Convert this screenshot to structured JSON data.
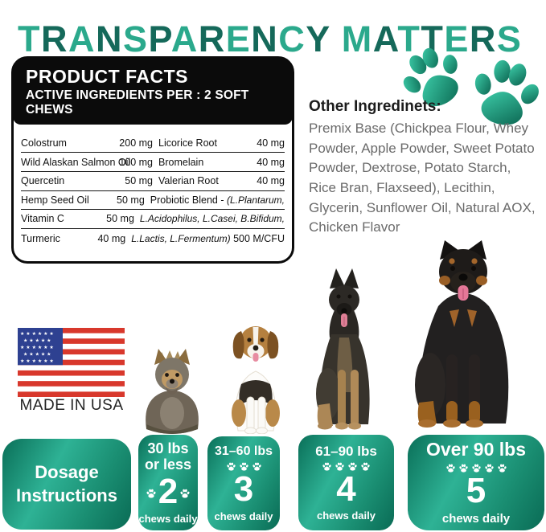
{
  "title": {
    "text": "TRANSPARENCY MATTERS",
    "color_light": "#2BA98C",
    "color_dark": "#15695A"
  },
  "facts": {
    "title": "PRODUCT FACTS",
    "subtitle": "ACTIVE INGREDIENTS PER : 2 SOFT CHEWS",
    "rows": [
      {
        "left_name": "Colostrum",
        "left_amt": "200 mg",
        "right_pre": "Licorice Root",
        "right_it": "",
        "right_post": "",
        "right_amt": "40 mg"
      },
      {
        "left_name": "Wild Alaskan Salmon Oil",
        "left_amt": "100 mg",
        "right_pre": "Bromelain",
        "right_it": "",
        "right_post": "",
        "right_amt": "40 mg"
      },
      {
        "left_name": "Quercetin",
        "left_amt": "50 mg",
        "right_pre": "Valerian Root",
        "right_it": "",
        "right_post": "",
        "right_amt": "40 mg"
      },
      {
        "left_name": "Hemp Seed Oil",
        "left_amt": "50 mg",
        "right_pre": "Probiotic Blend - ",
        "right_it": "(L.Plantarum,",
        "right_post": "",
        "right_amt": ""
      },
      {
        "left_name": "Vitamin C",
        "left_amt": "50 mg",
        "right_pre": "",
        "right_it": "L.Acidophilus, L.Casei, B.Bifidum,",
        "right_post": "",
        "right_amt": ""
      },
      {
        "left_name": "Turmeric",
        "left_amt": "40 mg",
        "right_pre": "",
        "right_it": "L.Lactis, L.Fermentum)",
        "right_post": " 500 M/CFU",
        "right_amt": ""
      }
    ]
  },
  "other_ingredients": {
    "heading": "Other Ingredinets:",
    "text": "Premix Base (Chickpea Flour, Whey Powder, Apple Powder, Sweet Potato Powder, Dextrose, Potato Starch, Rice Bran, Flaxseed), Lecithin, Glycerin, Sunflower Oil, Natural AOX, Chicken Flavor"
  },
  "made_in": {
    "label": "MADE IN USA"
  },
  "images": {
    "decorations": [
      "paw-print-icon",
      "paw-print-icon"
    ],
    "flag": "usa-flag",
    "dogs": [
      "yorkshire-terrier",
      "beagle-puppy",
      "german-shepherd",
      "rottweiler"
    ]
  },
  "dosage": {
    "header": "Dosage Instructions",
    "badges": [
      {
        "weight": "30 lbs or less",
        "paws": 2,
        "number": "2",
        "caption": "chews daily"
      },
      {
        "weight": "31–60 lbs",
        "paws": 3,
        "number": "3",
        "caption": "chews daily"
      },
      {
        "weight": "61–90 lbs",
        "paws": 4,
        "number": "4",
        "caption": "chews daily"
      },
      {
        "weight": "Over 90 lbs",
        "paws": 5,
        "number": "5",
        "caption": "chews daily"
      }
    ]
  },
  "colors": {
    "accent_light": "#2EB295",
    "accent_dark": "#0A6B55",
    "panel_black": "#0B0B0B",
    "flag_red": "#D8382C",
    "flag_blue": "#2E4191"
  }
}
